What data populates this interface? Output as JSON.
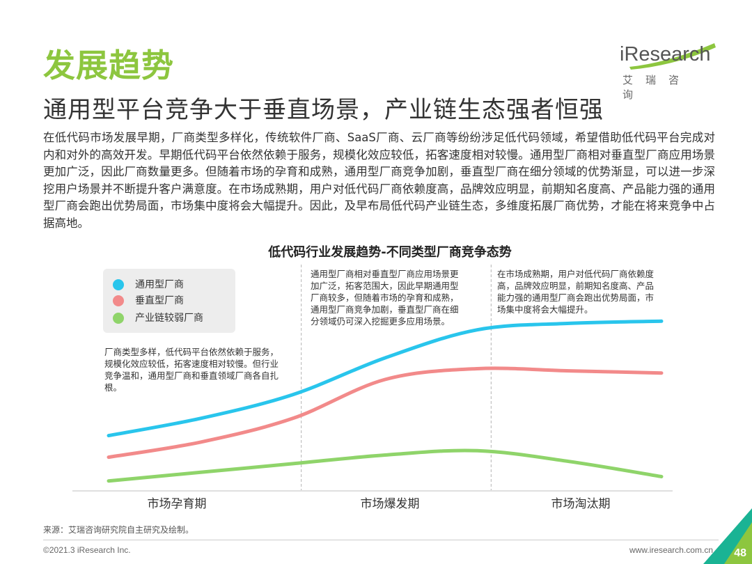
{
  "header": {
    "section_title": "发展趋势",
    "subtitle": "通用型平台竞争大于垂直场景，产业链生态强者恒强"
  },
  "logo": {
    "word": "iResearch",
    "cn": "艾瑞咨询"
  },
  "body_text": "在低代码市场发展早期，厂商类型多样化，传统软件厂商、SaaS厂商、云厂商等纷纷涉足低代码领域，希望借助低代码平台完成对内和对外的高效开发。早期低代码平台依然依赖于服务，规模化效应较低，拓客速度相对较慢。通用型厂商相对垂直型厂商应用场景更加广泛，因此厂商数量更多。但随着市场的孕育和成熟，通用型厂商竞争加剧，垂直型厂商在细分领域的优势渐显，可以进一步深挖用户场景并不断提升客户满意度。在市场成熟期，用户对低代码厂商依赖度高，品牌效应明显，前期知名度高、产品能力强的通用型厂商会跑出优势局面，市场集中度将会大幅提升。因此，及早布局低代码产业链生态，多维度拓展厂商优势，才能在将来竞争中占据高地。",
  "chart_data": {
    "type": "line",
    "title": "低代码行业发展趋势-不同类型厂商竞争态势",
    "categories": [
      "市场孕育期",
      "市场爆发期",
      "市场淘汰期"
    ],
    "x": [
      0,
      0.5,
      1,
      1.5,
      2,
      2.5,
      3
    ],
    "series": [
      {
        "name": "通用型厂商",
        "color": "#29c5ec",
        "values": [
          24,
          32,
          43,
          60,
          73,
          76,
          77
        ]
      },
      {
        "name": "垂直型厂商",
        "color": "#f28a8a",
        "values": [
          14,
          21,
          32,
          50,
          55,
          54,
          53
        ]
      },
      {
        "name": "产业链较弱厂商",
        "color": "#8fd46a",
        "values": [
          3,
          7,
          11,
          15,
          17,
          12,
          5
        ]
      }
    ],
    "ylim": [
      0,
      100
    ],
    "grid": false,
    "legend_position": "top-left",
    "annotations": [
      "厂商类型多样，低代码平台依然依赖于服务，规模化效应较低，拓客速度相对较慢。但行业竞争温和，通用型厂商和垂直领域厂商各自扎根。",
      "通用型厂商相对垂直型厂商应用场景更加广泛，拓客范围大，因此早期通用型厂商较多，但随着市场的孕育和成熟，通用型厂商竞争加剧，垂直型厂商在细分领域仍可深入挖掘更多应用场景。",
      "在市场成熟期，用户对低代码厂商依赖度高，品牌效应明显，前期知名度高、产品能力强的通用型厂商会跑出优势局面，市场集中度将会大幅提升。"
    ]
  },
  "footer": {
    "source": "来源：艾瑞咨询研究院自主研究及绘制。",
    "copyright": "©2021.3 iResearch Inc.",
    "website": "www.iresearch.com.cn",
    "page_number": "48"
  },
  "colors": {
    "brand_green": "#8dc63f",
    "corner_teal": "#1ab394"
  }
}
